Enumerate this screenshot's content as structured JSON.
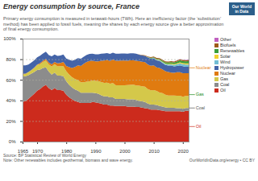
{
  "chart_data": {
    "type": "area",
    "stacked": true,
    "title": "Energy consumption by source, France",
    "subtitle": "Primary energy consumption is measured in terawatt-hours (TWh). Here an inefficiency factor (the ‘substitution’\nmethod) has been applied to fossil fuels, meaning the shares by each energy source give a better approximation\nof final energy consumption.",
    "footnotes": [
      "Source: BP Statistical Review of World Energy",
      "Note: Other renewables includes geothermal, biomass and wave energy."
    ],
    "credit": "OurWorldInData.org/energy • CC BY",
    "badge": [
      "Our World",
      "in Data"
    ],
    "x": [
      1965,
      1966,
      1967,
      1968,
      1969,
      1970,
      1971,
      1972,
      1973,
      1974,
      1975,
      1976,
      1977,
      1978,
      1979,
      1980,
      1981,
      1982,
      1983,
      1984,
      1985,
      1986,
      1987,
      1988,
      1989,
      1990,
      1991,
      1992,
      1993,
      1994,
      1995,
      1996,
      1997,
      1998,
      1999,
      2000,
      2001,
      2002,
      2003,
      2004,
      2005,
      2006,
      2007,
      2008,
      2009,
      2010,
      2011,
      2012,
      2013,
      2014,
      2015,
      2016,
      2017,
      2018,
      2019,
      2020,
      2021,
      2022
    ],
    "xlim": [
      1965,
      2022
    ],
    "xticks": [
      1965,
      1970,
      1980,
      1990,
      2000,
      2010,
      2020
    ],
    "ylim": [
      0,
      1.0
    ],
    "yticks": [
      {
        "value": 0.0,
        "label": "0%"
      },
      {
        "value": 0.2,
        "label": "20%"
      },
      {
        "value": 0.4,
        "label": "40%"
      },
      {
        "value": 0.6,
        "label": "60%"
      },
      {
        "value": 0.8,
        "label": "80%"
      },
      {
        "value": 1.0,
        "label": "100%"
      }
    ],
    "grid": true,
    "legend": "right",
    "series": [
      {
        "name": "Oil",
        "color": "#cc2b1d",
        "values": [
          0.385,
          0.395,
          0.415,
          0.44,
          0.465,
          0.495,
          0.51,
          0.535,
          0.55,
          0.52,
          0.5,
          0.52,
          0.5,
          0.5,
          0.495,
          0.455,
          0.43,
          0.41,
          0.395,
          0.385,
          0.375,
          0.375,
          0.375,
          0.375,
          0.385,
          0.38,
          0.375,
          0.37,
          0.36,
          0.36,
          0.35,
          0.35,
          0.345,
          0.345,
          0.345,
          0.345,
          0.34,
          0.34,
          0.34,
          0.335,
          0.335,
          0.33,
          0.325,
          0.32,
          0.31,
          0.31,
          0.31,
          0.305,
          0.3,
          0.295,
          0.295,
          0.295,
          0.295,
          0.295,
          0.295,
          0.29,
          0.298,
          0.298
        ]
      },
      {
        "name": "Coal",
        "color": "#8c8c8c",
        "values": [
          0.25,
          0.24,
          0.23,
          0.22,
          0.21,
          0.2,
          0.19,
          0.18,
          0.17,
          0.16,
          0.15,
          0.15,
          0.14,
          0.14,
          0.14,
          0.13,
          0.12,
          0.115,
          0.11,
          0.11,
          0.1,
          0.1,
          0.1,
          0.1,
          0.09,
          0.09,
          0.09,
          0.08,
          0.08,
          0.08,
          0.08,
          0.08,
          0.07,
          0.07,
          0.07,
          0.07,
          0.07,
          0.07,
          0.07,
          0.07,
          0.06,
          0.06,
          0.06,
          0.05,
          0.05,
          0.05,
          0.045,
          0.04,
          0.04,
          0.038,
          0.033,
          0.033,
          0.033,
          0.03,
          0.03,
          0.028,
          0.028,
          0.028
        ]
      },
      {
        "name": "Gas",
        "color": "#d4c84a",
        "values": [
          0.02,
          0.022,
          0.028,
          0.033,
          0.04,
          0.05,
          0.052,
          0.058,
          0.068,
          0.07,
          0.078,
          0.082,
          0.09,
          0.092,
          0.098,
          0.098,
          0.1,
          0.1,
          0.102,
          0.103,
          0.102,
          0.102,
          0.108,
          0.11,
          0.118,
          0.12,
          0.122,
          0.128,
          0.13,
          0.132,
          0.132,
          0.138,
          0.132,
          0.132,
          0.132,
          0.132,
          0.138,
          0.14,
          0.142,
          0.14,
          0.148,
          0.148,
          0.148,
          0.14,
          0.138,
          0.14,
          0.138,
          0.132,
          0.13,
          0.122,
          0.12,
          0.12,
          0.12,
          0.12,
          0.12,
          0.118,
          0.118,
          0.118
        ]
      },
      {
        "name": "Nuclear",
        "color": "#e07b10",
        "values": [
          0.003,
          0.003,
          0.003,
          0.003,
          0.003,
          0.003,
          0.01,
          0.012,
          0.015,
          0.018,
          0.022,
          0.022,
          0.03,
          0.032,
          0.04,
          0.052,
          0.072,
          0.09,
          0.118,
          0.142,
          0.158,
          0.178,
          0.19,
          0.198,
          0.192,
          0.19,
          0.192,
          0.208,
          0.218,
          0.22,
          0.222,
          0.228,
          0.238,
          0.238,
          0.24,
          0.24,
          0.238,
          0.24,
          0.238,
          0.24,
          0.238,
          0.238,
          0.238,
          0.238,
          0.238,
          0.24,
          0.228,
          0.238,
          0.232,
          0.228,
          0.228,
          0.222,
          0.22,
          0.228,
          0.228,
          0.228,
          0.22,
          0.22
        ]
      },
      {
        "name": "Hydropower",
        "color": "#4464a8",
        "values": [
          0.082,
          0.08,
          0.072,
          0.072,
          0.072,
          0.07,
          0.072,
          0.07,
          0.07,
          0.072,
          0.078,
          0.072,
          0.072,
          0.072,
          0.072,
          0.072,
          0.072,
          0.07,
          0.07,
          0.07,
          0.07,
          0.07,
          0.068,
          0.068,
          0.068,
          0.068,
          0.068,
          0.068,
          0.068,
          0.068,
          0.068,
          0.068,
          0.068,
          0.068,
          0.068,
          0.068,
          0.068,
          0.068,
          0.068,
          0.068,
          0.062,
          0.062,
          0.062,
          0.068,
          0.068,
          0.068,
          0.068,
          0.068,
          0.062,
          0.062,
          0.062,
          0.068,
          0.062,
          0.062,
          0.068,
          0.068,
          0.062,
          0.062
        ]
      },
      {
        "name": "Wind",
        "color": "#72bdd4",
        "values": [
          0.0,
          0.0,
          0.0,
          0.0,
          0.0,
          0.0,
          0.0,
          0.0,
          0.0,
          0.0,
          0.0,
          0.0,
          0.0,
          0.0,
          0.0,
          0.0,
          0.0,
          0.0,
          0.0,
          0.0,
          0.0,
          0.0,
          0.0,
          0.0,
          0.0,
          0.0,
          0.0,
          0.0,
          0.0,
          0.0,
          0.0,
          0.0,
          0.0,
          0.0,
          0.0,
          0.0,
          0.0,
          0.0,
          0.0,
          0.0,
          0.0,
          0.0,
          0.0,
          0.002,
          0.003,
          0.004,
          0.005,
          0.006,
          0.007,
          0.008,
          0.01,
          0.012,
          0.014,
          0.016,
          0.018,
          0.02,
          0.022,
          0.022
        ]
      },
      {
        "name": "Solar",
        "color": "#f0d030",
        "values": [
          0.0,
          0.0,
          0.0,
          0.0,
          0.0,
          0.0,
          0.0,
          0.0,
          0.0,
          0.0,
          0.0,
          0.0,
          0.0,
          0.0,
          0.0,
          0.0,
          0.0,
          0.0,
          0.0,
          0.0,
          0.0,
          0.0,
          0.0,
          0.0,
          0.0,
          0.0,
          0.0,
          0.0,
          0.0,
          0.0,
          0.0,
          0.0,
          0.0,
          0.0,
          0.0,
          0.0,
          0.0,
          0.0,
          0.0,
          0.0,
          0.0,
          0.0,
          0.0,
          0.0,
          0.0,
          0.0,
          0.002,
          0.003,
          0.004,
          0.005,
          0.006,
          0.007,
          0.008,
          0.009,
          0.01,
          0.01,
          0.011,
          0.011
        ]
      },
      {
        "name": "Renewables",
        "color": "#3a9e3a",
        "values": [
          0.0,
          0.0,
          0.0,
          0.0,
          0.0,
          0.0,
          0.0,
          0.0,
          0.0,
          0.0,
          0.0,
          0.0,
          0.0,
          0.0,
          0.0,
          0.0,
          0.0,
          0.0,
          0.0,
          0.0,
          0.0,
          0.0,
          0.0,
          0.0,
          0.0,
          0.0,
          0.0,
          0.0,
          0.0,
          0.0,
          0.0,
          0.0,
          0.0,
          0.0,
          0.0,
          0.0,
          0.0,
          0.0,
          0.0,
          0.0,
          0.0,
          0.0,
          0.0,
          0.003,
          0.005,
          0.006,
          0.007,
          0.008,
          0.01,
          0.012,
          0.013,
          0.014,
          0.016,
          0.018,
          0.02,
          0.02,
          0.021,
          0.022
        ]
      },
      {
        "name": "Biofuels",
        "color": "#9e5c1a",
        "values": [
          0.0,
          0.0,
          0.0,
          0.0,
          0.0,
          0.0,
          0.0,
          0.0,
          0.0,
          0.0,
          0.0,
          0.0,
          0.0,
          0.0,
          0.0,
          0.0,
          0.0,
          0.0,
          0.0,
          0.0,
          0.0,
          0.0,
          0.0,
          0.0,
          0.0,
          0.0,
          0.0,
          0.0,
          0.0,
          0.0,
          0.0,
          0.0,
          0.0,
          0.0,
          0.0,
          0.0,
          0.0,
          0.0,
          0.0,
          0.0,
          0.003,
          0.004,
          0.005,
          0.006,
          0.008,
          0.009,
          0.01,
          0.01,
          0.01,
          0.01,
          0.01,
          0.01,
          0.01,
          0.01,
          0.01,
          0.01,
          0.01,
          0.01
        ]
      },
      {
        "name": "Other",
        "color": "#c060c0",
        "values": [
          0.0,
          0.0,
          0.0,
          0.0,
          0.0,
          0.0,
          0.0,
          0.0,
          0.0,
          0.0,
          0.0,
          0.0,
          0.0,
          0.0,
          0.0,
          0.0,
          0.0,
          0.0,
          0.0,
          0.0,
          0.0,
          0.0,
          0.0,
          0.0,
          0.0,
          0.0,
          0.0,
          0.0,
          0.0,
          0.0,
          0.0,
          0.0,
          0.0,
          0.0,
          0.0,
          0.0,
          0.0,
          0.0,
          0.0,
          0.0,
          0.0,
          0.0,
          0.0,
          0.0,
          0.0,
          0.0,
          0.0,
          0.0,
          0.0,
          0.0,
          0.001,
          0.001,
          0.002,
          0.002,
          0.002,
          0.002,
          0.003,
          0.005
        ]
      }
    ],
    "annotations": [
      {
        "text": "Nuclear",
        "xy": [
          2022,
          0.72
        ],
        "xytext": [
          2024,
          0.72
        ],
        "color": "#e07b10"
      },
      {
        "text": "Gas",
        "xy": [
          2022,
          0.46
        ],
        "xytext": [
          2024,
          0.46
        ],
        "color": "#228B22"
      },
      {
        "text": "Coal",
        "xy": [
          2022,
          0.33
        ],
        "xytext": [
          2024,
          0.33
        ],
        "color": "#555555"
      },
      {
        "text": "Oil",
        "xy": [
          2022,
          0.15
        ],
        "xytext": [
          2024,
          0.15
        ],
        "color": "#cc2b1d"
      }
    ]
  }
}
